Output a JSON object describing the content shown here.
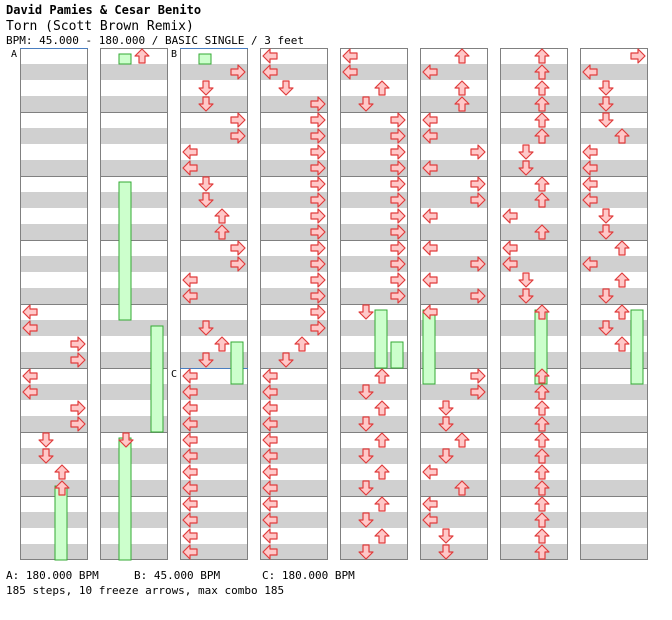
{
  "header": {
    "artist": "David Pamies & Cesar Benito",
    "title": "Torn (Scott Brown Remix)",
    "info": "BPM: 45.000 - 180.000 / BASIC SINGLE / 3 feet"
  },
  "bpm_markers": [
    {
      "label": "A",
      "column": 0,
      "beat": 0
    },
    {
      "label": "B",
      "column": 2,
      "beat": 0
    },
    {
      "label": "C",
      "column": 2,
      "beat": 20
    }
  ],
  "legend": [
    {
      "text": "A: 180.000 BPM"
    },
    {
      "text": "B: 45.000 BPM"
    },
    {
      "text": "C: 180.000 BPM"
    }
  ],
  "stats": "185 steps, 10 freeze arrows, max combo 185",
  "colors": {
    "arrow_fill": "#ffc8c8",
    "arrow_stroke": "#e03c3c",
    "freeze_fill": "#ccffcc",
    "freeze_stroke": "#33aa33",
    "stripe": "#d0d0d0",
    "bpm_line": "#4a7ec0"
  },
  "chart": {
    "columns": 8,
    "beats_per_column": 32,
    "directions": [
      "left",
      "down",
      "up",
      "right"
    ],
    "notes": [
      [
        [
          16,
          "L"
        ],
        [
          17,
          "L"
        ],
        [
          18,
          "R"
        ],
        [
          19,
          "R"
        ],
        [
          20,
          "L"
        ],
        [
          21,
          "L"
        ],
        [
          22,
          "R"
        ],
        [
          23,
          "R"
        ],
        [
          24,
          "D"
        ],
        [
          25,
          "D"
        ],
        [
          26,
          "U"
        ],
        [
          27,
          "U"
        ]
      ],
      [
        [
          0,
          "U"
        ],
        [
          24,
          "D"
        ]
      ],
      [
        [
          1,
          "R"
        ],
        [
          2,
          "D"
        ],
        [
          3,
          "D"
        ],
        [
          4,
          "R"
        ],
        [
          5,
          "R"
        ],
        [
          6,
          "L"
        ],
        [
          7,
          "L"
        ],
        [
          8,
          "D"
        ],
        [
          9,
          "D"
        ],
        [
          10,
          "U"
        ],
        [
          11,
          "U"
        ],
        [
          12,
          "R"
        ],
        [
          13,
          "R"
        ],
        [
          14,
          "L"
        ],
        [
          15,
          "L"
        ],
        [
          17,
          "D"
        ],
        [
          18,
          "U"
        ],
        [
          19,
          "D"
        ],
        [
          20,
          "L"
        ],
        [
          21,
          "L"
        ],
        [
          22,
          "L"
        ],
        [
          23,
          "L"
        ],
        [
          24,
          "L"
        ],
        [
          25,
          "L"
        ],
        [
          26,
          "L"
        ],
        [
          27,
          "L"
        ],
        [
          28,
          "L"
        ],
        [
          29,
          "L"
        ],
        [
          30,
          "L"
        ],
        [
          31,
          "L"
        ]
      ],
      [
        [
          0,
          "L"
        ],
        [
          1,
          "L"
        ],
        [
          2,
          "D"
        ],
        [
          3,
          "R"
        ],
        [
          4,
          "R"
        ],
        [
          5,
          "R"
        ],
        [
          6,
          "R"
        ],
        [
          7,
          "R"
        ],
        [
          8,
          "R"
        ],
        [
          9,
          "R"
        ],
        [
          10,
          "R"
        ],
        [
          11,
          "R"
        ],
        [
          12,
          "R"
        ],
        [
          13,
          "R"
        ],
        [
          14,
          "R"
        ],
        [
          15,
          "R"
        ],
        [
          16,
          "R"
        ],
        [
          17,
          "R"
        ],
        [
          18,
          "U"
        ],
        [
          19,
          "D"
        ],
        [
          20,
          "L"
        ],
        [
          21,
          "L"
        ],
        [
          22,
          "L"
        ],
        [
          23,
          "L"
        ],
        [
          24,
          "L"
        ],
        [
          25,
          "L"
        ],
        [
          26,
          "L"
        ],
        [
          27,
          "L"
        ],
        [
          28,
          "L"
        ],
        [
          29,
          "L"
        ],
        [
          30,
          "L"
        ],
        [
          31,
          "L"
        ]
      ],
      [
        [
          0,
          "L"
        ],
        [
          1,
          "L"
        ],
        [
          2,
          "U"
        ],
        [
          3,
          "D"
        ],
        [
          4,
          "R"
        ],
        [
          5,
          "R"
        ],
        [
          6,
          "R"
        ],
        [
          7,
          "R"
        ],
        [
          8,
          "R"
        ],
        [
          9,
          "R"
        ],
        [
          10,
          "R"
        ],
        [
          11,
          "R"
        ],
        [
          12,
          "R"
        ],
        [
          13,
          "R"
        ],
        [
          14,
          "R"
        ],
        [
          15,
          "R"
        ],
        [
          16,
          "D"
        ],
        [
          20,
          "U"
        ],
        [
          21,
          "D"
        ],
        [
          22,
          "U"
        ],
        [
          23,
          "D"
        ],
        [
          24,
          "U"
        ],
        [
          25,
          "D"
        ],
        [
          26,
          "U"
        ],
        [
          27,
          "D"
        ],
        [
          28,
          "U"
        ],
        [
          29,
          "D"
        ],
        [
          30,
          "U"
        ],
        [
          31,
          "D"
        ]
      ],
      [
        [
          0,
          "U"
        ],
        [
          1,
          "L"
        ],
        [
          2,
          "U"
        ],
        [
          3,
          "U"
        ],
        [
          4,
          "L"
        ],
        [
          5,
          "L"
        ],
        [
          6,
          "R"
        ],
        [
          7,
          "L"
        ],
        [
          8,
          "R"
        ],
        [
          9,
          "R"
        ],
        [
          10,
          "L"
        ],
        [
          12,
          "L"
        ],
        [
          13,
          "R"
        ],
        [
          14,
          "L"
        ],
        [
          15,
          "R"
        ],
        [
          16,
          "L"
        ],
        [
          20,
          "R"
        ],
        [
          21,
          "R"
        ],
        [
          22,
          "D"
        ],
        [
          23,
          "D"
        ],
        [
          24,
          "U"
        ],
        [
          25,
          "D"
        ],
        [
          26,
          "L"
        ],
        [
          27,
          "U"
        ],
        [
          28,
          "L"
        ],
        [
          29,
          "L"
        ],
        [
          30,
          "D"
        ],
        [
          31,
          "D"
        ]
      ],
      [
        [
          0,
          "U"
        ],
        [
          1,
          "U"
        ],
        [
          2,
          "U"
        ],
        [
          3,
          "U"
        ],
        [
          4,
          "U"
        ],
        [
          5,
          "U"
        ],
        [
          6,
          "D"
        ],
        [
          7,
          "D"
        ],
        [
          8,
          "U"
        ],
        [
          9,
          "U"
        ],
        [
          10,
          "L"
        ],
        [
          11,
          "U"
        ],
        [
          12,
          "L"
        ],
        [
          13,
          "L"
        ],
        [
          14,
          "D"
        ],
        [
          15,
          "D"
        ],
        [
          16,
          "U"
        ],
        [
          20,
          "U"
        ],
        [
          21,
          "U"
        ],
        [
          22,
          "U"
        ],
        [
          23,
          "U"
        ],
        [
          24,
          "U"
        ],
        [
          25,
          "U"
        ],
        [
          26,
          "U"
        ],
        [
          27,
          "U"
        ],
        [
          28,
          "U"
        ],
        [
          29,
          "U"
        ],
        [
          30,
          "U"
        ],
        [
          31,
          "U"
        ]
      ],
      [
        [
          0,
          "R"
        ],
        [
          1,
          "L"
        ],
        [
          2,
          "D"
        ],
        [
          3,
          "D"
        ],
        [
          4,
          "D"
        ],
        [
          5,
          "U"
        ],
        [
          6,
          "L"
        ],
        [
          7,
          "L"
        ],
        [
          8,
          "L"
        ],
        [
          9,
          "L"
        ],
        [
          10,
          "D"
        ],
        [
          11,
          "D"
        ],
        [
          12,
          "U"
        ],
        [
          13,
          "L"
        ],
        [
          14,
          "U"
        ],
        [
          15,
          "D"
        ],
        [
          16,
          "U"
        ],
        [
          17,
          "D"
        ],
        [
          18,
          "U"
        ]
      ]
    ],
    "freezes": [
      [
        [
          27,
          32,
          "U"
        ]
      ],
      [
        [
          0,
          1,
          "D"
        ],
        [
          8,
          17,
          "D"
        ],
        [
          24,
          32,
          "D"
        ]
      ],
      [
        [
          0,
          1,
          "D"
        ],
        [
          18,
          21,
          "R"
        ]
      ],
      [],
      [
        [
          16,
          20,
          "U"
        ],
        [
          18,
          20,
          "R"
        ]
      ],
      [
        [
          16,
          21,
          "L"
        ]
      ],
      [
        [
          16,
          21,
          "U"
        ]
      ],
      [
        [
          16,
          21,
          "R"
        ]
      ]
    ],
    "freezes_carry": [
      [],
      [
        [
          17,
          24,
          "R"
        ]
      ],
      [],
      [],
      [],
      [],
      [],
      []
    ]
  }
}
